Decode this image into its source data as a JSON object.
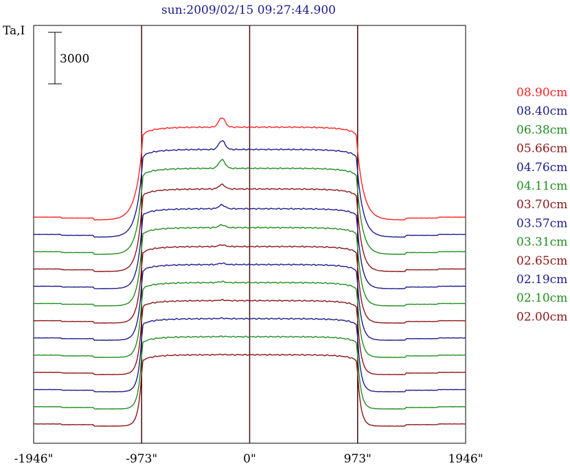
{
  "chart_data": {
    "type": "line",
    "title": "sun:2009/02/15 09:27:44.900",
    "ylabel": "Ta,I",
    "scale_bar_label": "3000",
    "x_ticks": [
      "-1946\"",
      "-973\"",
      "0\"",
      "973\"",
      "1946\""
    ],
    "xlim": [
      -1946,
      1946
    ],
    "vertical_lines_at": [
      -973,
      0,
      973
    ],
    "grid": false,
    "legend_position": "right",
    "series_offset": 1000,
    "series": [
      {
        "name": "08.90cm",
        "color": "#ff2020",
        "base": 12000,
        "disk": 5400,
        "limb_width": 60,
        "bump": 560
      },
      {
        "name": "08.40cm",
        "color": "#1a1a8c",
        "base": 11000,
        "disk": 5100,
        "limb_width": 55,
        "bump": 520
      },
      {
        "name": "06.38cm",
        "color": "#1e8c1e",
        "base": 10000,
        "disk": 5000,
        "limb_width": 50,
        "bump": 500
      },
      {
        "name": "05.66cm",
        "color": "#8c1414",
        "base": 9000,
        "disk": 4800,
        "limb_width": 45,
        "bump": 260
      },
      {
        "name": "04.76cm",
        "color": "#1a1a8c",
        "base": 8000,
        "disk": 4650,
        "limb_width": 42,
        "bump": 220
      },
      {
        "name": "04.11cm",
        "color": "#1e8c1e",
        "base": 7000,
        "disk": 4550,
        "limb_width": 40,
        "bump": 160
      },
      {
        "name": "03.70cm",
        "color": "#8c1414",
        "base": 6000,
        "disk": 4450,
        "limb_width": 38,
        "bump": 100
      },
      {
        "name": "03.57cm",
        "color": "#1a1a8c",
        "base": 5000,
        "disk": 4400,
        "limb_width": 36,
        "bump": 80
      },
      {
        "name": "03.31cm",
        "color": "#1e8c1e",
        "base": 4000,
        "disk": 4350,
        "limb_width": 34,
        "bump": 60
      },
      {
        "name": "02.65cm",
        "color": "#8c1414",
        "base": 3000,
        "disk": 4300,
        "limb_width": 32,
        "bump": 40
      },
      {
        "name": "02.19cm",
        "color": "#1a1a8c",
        "base": 2000,
        "disk": 4250,
        "limb_width": 30,
        "bump": 30
      },
      {
        "name": "02.10cm",
        "color": "#1e8c1e",
        "base": 1000,
        "disk": 4200,
        "limb_width": 30,
        "bump": 20
      },
      {
        "name": "02.00cm",
        "color": "#8c1414",
        "base": 0,
        "disk": 4150,
        "limb_width": 30,
        "bump": 20
      }
    ]
  }
}
